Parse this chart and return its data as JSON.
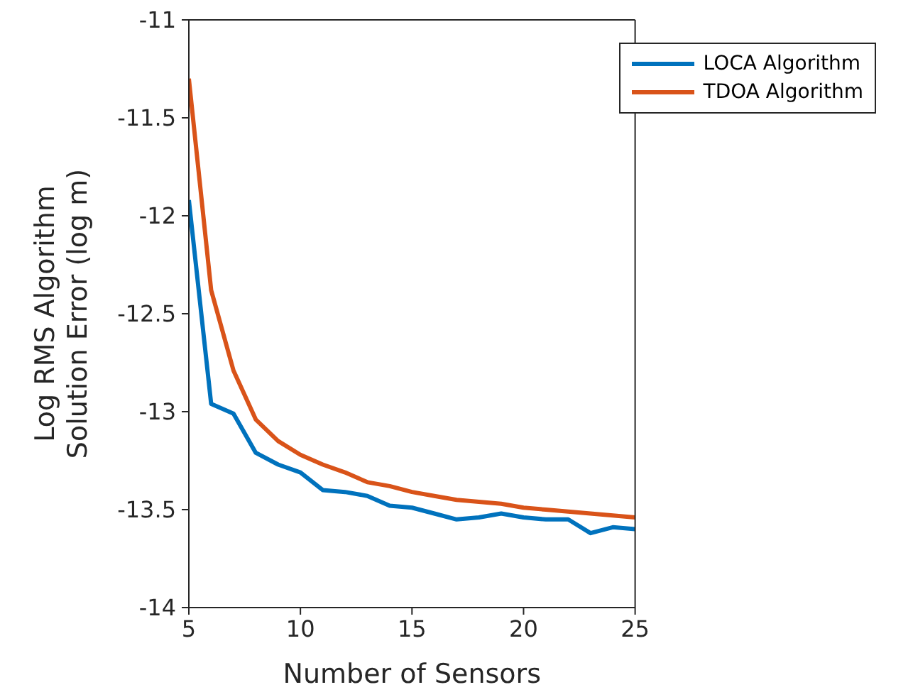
{
  "chart_data": {
    "type": "line",
    "xlabel": "Number of Sensors",
    "ylabel": "Log RMS Algorithm Solution Error (log m)",
    "x": [
      5,
      6,
      7,
      8,
      9,
      10,
      11,
      12,
      13,
      14,
      15,
      16,
      17,
      18,
      19,
      20,
      21,
      22,
      23,
      24,
      25
    ],
    "series": [
      {
        "name": "LOCA Algorithm",
        "color": "#0072bd",
        "values": [
          -11.92,
          -12.96,
          -13.01,
          -13.21,
          -13.27,
          -13.31,
          -13.4,
          -13.41,
          -13.43,
          -13.48,
          -13.49,
          -13.52,
          -13.55,
          -13.54,
          -13.52,
          -13.54,
          -13.55,
          -13.55,
          -13.62,
          -13.59,
          -13.6
        ]
      },
      {
        "name": "TDOA Algorithm",
        "color": "#d95319",
        "values": [
          -11.3,
          -12.38,
          -12.79,
          -13.04,
          -13.15,
          -13.22,
          -13.27,
          -13.31,
          -13.36,
          -13.38,
          -13.41,
          -13.43,
          -13.45,
          -13.46,
          -13.47,
          -13.49,
          -13.5,
          -13.51,
          -13.52,
          -13.53,
          -13.54
        ]
      }
    ],
    "xlim": [
      5,
      25
    ],
    "xticks": [
      5,
      10,
      15,
      20,
      25
    ],
    "ylim": [
      -14,
      -11
    ],
    "yticks": [
      -14,
      -13.5,
      -13,
      -12.5,
      -12,
      -11.5,
      -11
    ],
    "legend": "top right",
    "grid": false,
    "marker": "none",
    "line_style": "solid"
  }
}
